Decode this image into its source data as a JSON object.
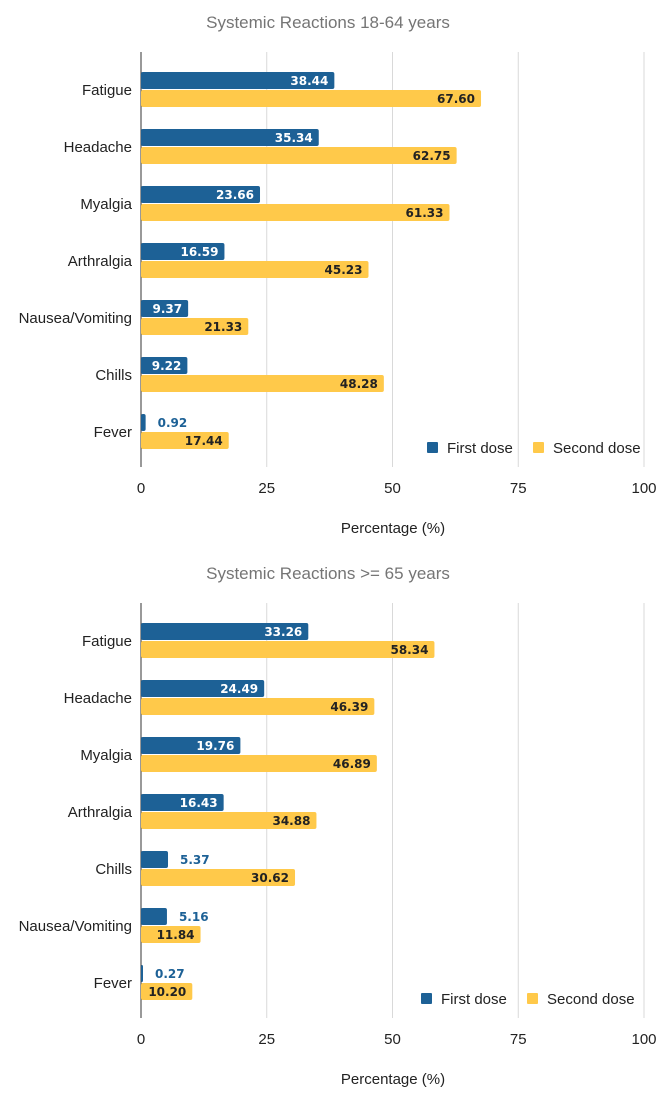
{
  "colors": {
    "first_dose": "#1d6196",
    "second_dose": "#ffc94a",
    "grid": "#d9d9d9",
    "axis": "#333333",
    "title": "#757575"
  },
  "chart_data": [
    {
      "type": "bar",
      "orientation": "horizontal",
      "title": "Systemic Reactions 18-64 years",
      "xlabel": "Percentage (%)",
      "ylabel": "",
      "xlim": [
        0,
        100
      ],
      "x_ticks": [
        0,
        25,
        50,
        75,
        100
      ],
      "grid": true,
      "legend": "bottom-right",
      "categories": [
        "Fatigue",
        "Headache",
        "Myalgia",
        "Arthralgia",
        "Nausea/Vomiting",
        "Chills",
        "Fever"
      ],
      "series": [
        {
          "name": "First dose",
          "values": [
            38.44,
            35.34,
            23.66,
            16.59,
            9.37,
            9.22,
            0.92
          ],
          "labels": [
            "38.44",
            "35.34",
            "23.66",
            "16.59",
            "9.37",
            "9.22",
            "0.92"
          ]
        },
        {
          "name": "Second dose",
          "values": [
            67.6,
            62.75,
            61.33,
            45.23,
            21.33,
            48.28,
            17.44
          ],
          "labels": [
            "67.60",
            "62.75",
            "61.33",
            "45.23",
            "21.33",
            "48.28",
            "17.44"
          ]
        }
      ]
    },
    {
      "type": "bar",
      "orientation": "horizontal",
      "title": "Systemic Reactions >= 65 years",
      "xlabel": "Percentage (%)",
      "ylabel": "",
      "xlim": [
        0,
        100
      ],
      "x_ticks": [
        0,
        25,
        50,
        75,
        100
      ],
      "grid": true,
      "legend": "bottom-right",
      "categories": [
        "Fatigue",
        "Headache",
        "Myalgia",
        "Arthralgia",
        "Chills",
        "Nausea/Vomiting",
        "Fever"
      ],
      "series": [
        {
          "name": "First dose",
          "values": [
            33.26,
            24.49,
            19.76,
            16.43,
            5.37,
            5.16,
            0.27
          ],
          "labels": [
            "33.26",
            "24.49",
            "19.76",
            "16.43",
            "5.37",
            "5.16",
            "0.27"
          ]
        },
        {
          "name": "Second dose",
          "values": [
            58.34,
            46.39,
            46.89,
            34.88,
            30.62,
            11.84,
            10.2
          ],
          "labels": [
            "58.34",
            "46.39",
            "46.89",
            "34.88",
            "30.62",
            "11.84",
            "10.20"
          ]
        }
      ]
    }
  ]
}
